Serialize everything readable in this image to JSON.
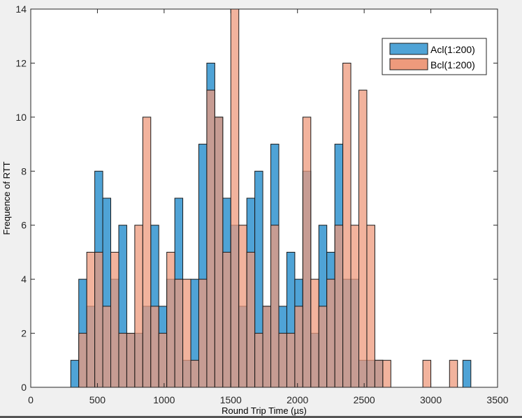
{
  "chart_data": {
    "type": "bar",
    "subtype": "overlapping-histogram",
    "title": "",
    "xlabel": "Round Trip Time (µs)",
    "ylabel": "Frequence of RTT",
    "xlim": [
      0,
      3500
    ],
    "ylim": [
      0,
      14
    ],
    "xticks": [
      0,
      500,
      1000,
      1500,
      2000,
      2500,
      3000,
      3500
    ],
    "yticks": [
      0,
      2,
      4,
      6,
      8,
      10,
      12,
      14
    ],
    "grid": false,
    "legend_position": "top-right",
    "bin_width": 60,
    "series": [
      {
        "name": "Acl(1:200)",
        "color": "#0072BD",
        "fill": "#4fa3d6",
        "bins": [
          {
            "x": 300,
            "count": 1
          },
          {
            "x": 360,
            "count": 4
          },
          {
            "x": 420,
            "count": 3
          },
          {
            "x": 480,
            "count": 8
          },
          {
            "x": 540,
            "count": 7
          },
          {
            "x": 600,
            "count": 4
          },
          {
            "x": 660,
            "count": 6
          },
          {
            "x": 720,
            "count": 2
          },
          {
            "x": 780,
            "count": 2
          },
          {
            "x": 840,
            "count": 3
          },
          {
            "x": 900,
            "count": 6
          },
          {
            "x": 960,
            "count": 3
          },
          {
            "x": 1020,
            "count": 4
          },
          {
            "x": 1080,
            "count": 7
          },
          {
            "x": 1140,
            "count": 1
          },
          {
            "x": 1200,
            "count": 4
          },
          {
            "x": 1260,
            "count": 9
          },
          {
            "x": 1320,
            "count": 12
          },
          {
            "x": 1380,
            "count": 10
          },
          {
            "x": 1440,
            "count": 7
          },
          {
            "x": 1500,
            "count": 6
          },
          {
            "x": 1560,
            "count": 3
          },
          {
            "x": 1620,
            "count": 7
          },
          {
            "x": 1680,
            "count": 8
          },
          {
            "x": 1740,
            "count": 3
          },
          {
            "x": 1800,
            "count": 9
          },
          {
            "x": 1860,
            "count": 3
          },
          {
            "x": 1920,
            "count": 5
          },
          {
            "x": 1980,
            "count": 4
          },
          {
            "x": 2040,
            "count": 8
          },
          {
            "x": 2100,
            "count": 2
          },
          {
            "x": 2160,
            "count": 6
          },
          {
            "x": 2220,
            "count": 5
          },
          {
            "x": 2280,
            "count": 9
          },
          {
            "x": 2340,
            "count": 4
          },
          {
            "x": 2400,
            "count": 4
          },
          {
            "x": 2460,
            "count": 1
          },
          {
            "x": 2520,
            "count": 1
          },
          {
            "x": 2580,
            "count": 1
          },
          {
            "x": 3240,
            "count": 1
          }
        ]
      },
      {
        "name": "Bcl(1:200)",
        "color": "#D95319",
        "fill": "#ee9a7c",
        "bins": [
          {
            "x": 360,
            "count": 2
          },
          {
            "x": 420,
            "count": 5
          },
          {
            "x": 480,
            "count": 5
          },
          {
            "x": 540,
            "count": 3
          },
          {
            "x": 600,
            "count": 5
          },
          {
            "x": 660,
            "count": 2
          },
          {
            "x": 720,
            "count": 2
          },
          {
            "x": 780,
            "count": 6
          },
          {
            "x": 840,
            "count": 10
          },
          {
            "x": 900,
            "count": 3
          },
          {
            "x": 960,
            "count": 2
          },
          {
            "x": 1020,
            "count": 5
          },
          {
            "x": 1080,
            "count": 4
          },
          {
            "x": 1140,
            "count": 4
          },
          {
            "x": 1200,
            "count": 1
          },
          {
            "x": 1260,
            "count": 4
          },
          {
            "x": 1320,
            "count": 11
          },
          {
            "x": 1380,
            "count": 10
          },
          {
            "x": 1440,
            "count": 5
          },
          {
            "x": 1500,
            "count": 14
          },
          {
            "x": 1560,
            "count": 6
          },
          {
            "x": 1620,
            "count": 5
          },
          {
            "x": 1680,
            "count": 2
          },
          {
            "x": 1740,
            "count": 3
          },
          {
            "x": 1800,
            "count": 6
          },
          {
            "x": 1860,
            "count": 2
          },
          {
            "x": 1920,
            "count": 2
          },
          {
            "x": 1980,
            "count": 3
          },
          {
            "x": 2040,
            "count": 10
          },
          {
            "x": 2100,
            "count": 4
          },
          {
            "x": 2160,
            "count": 3
          },
          {
            "x": 2220,
            "count": 4
          },
          {
            "x": 2280,
            "count": 6
          },
          {
            "x": 2340,
            "count": 12
          },
          {
            "x": 2400,
            "count": 6
          },
          {
            "x": 2460,
            "count": 11
          },
          {
            "x": 2520,
            "count": 6
          },
          {
            "x": 2580,
            "count": 1
          },
          {
            "x": 2640,
            "count": 1
          },
          {
            "x": 2940,
            "count": 1
          },
          {
            "x": 3140,
            "count": 1
          }
        ]
      }
    ]
  }
}
